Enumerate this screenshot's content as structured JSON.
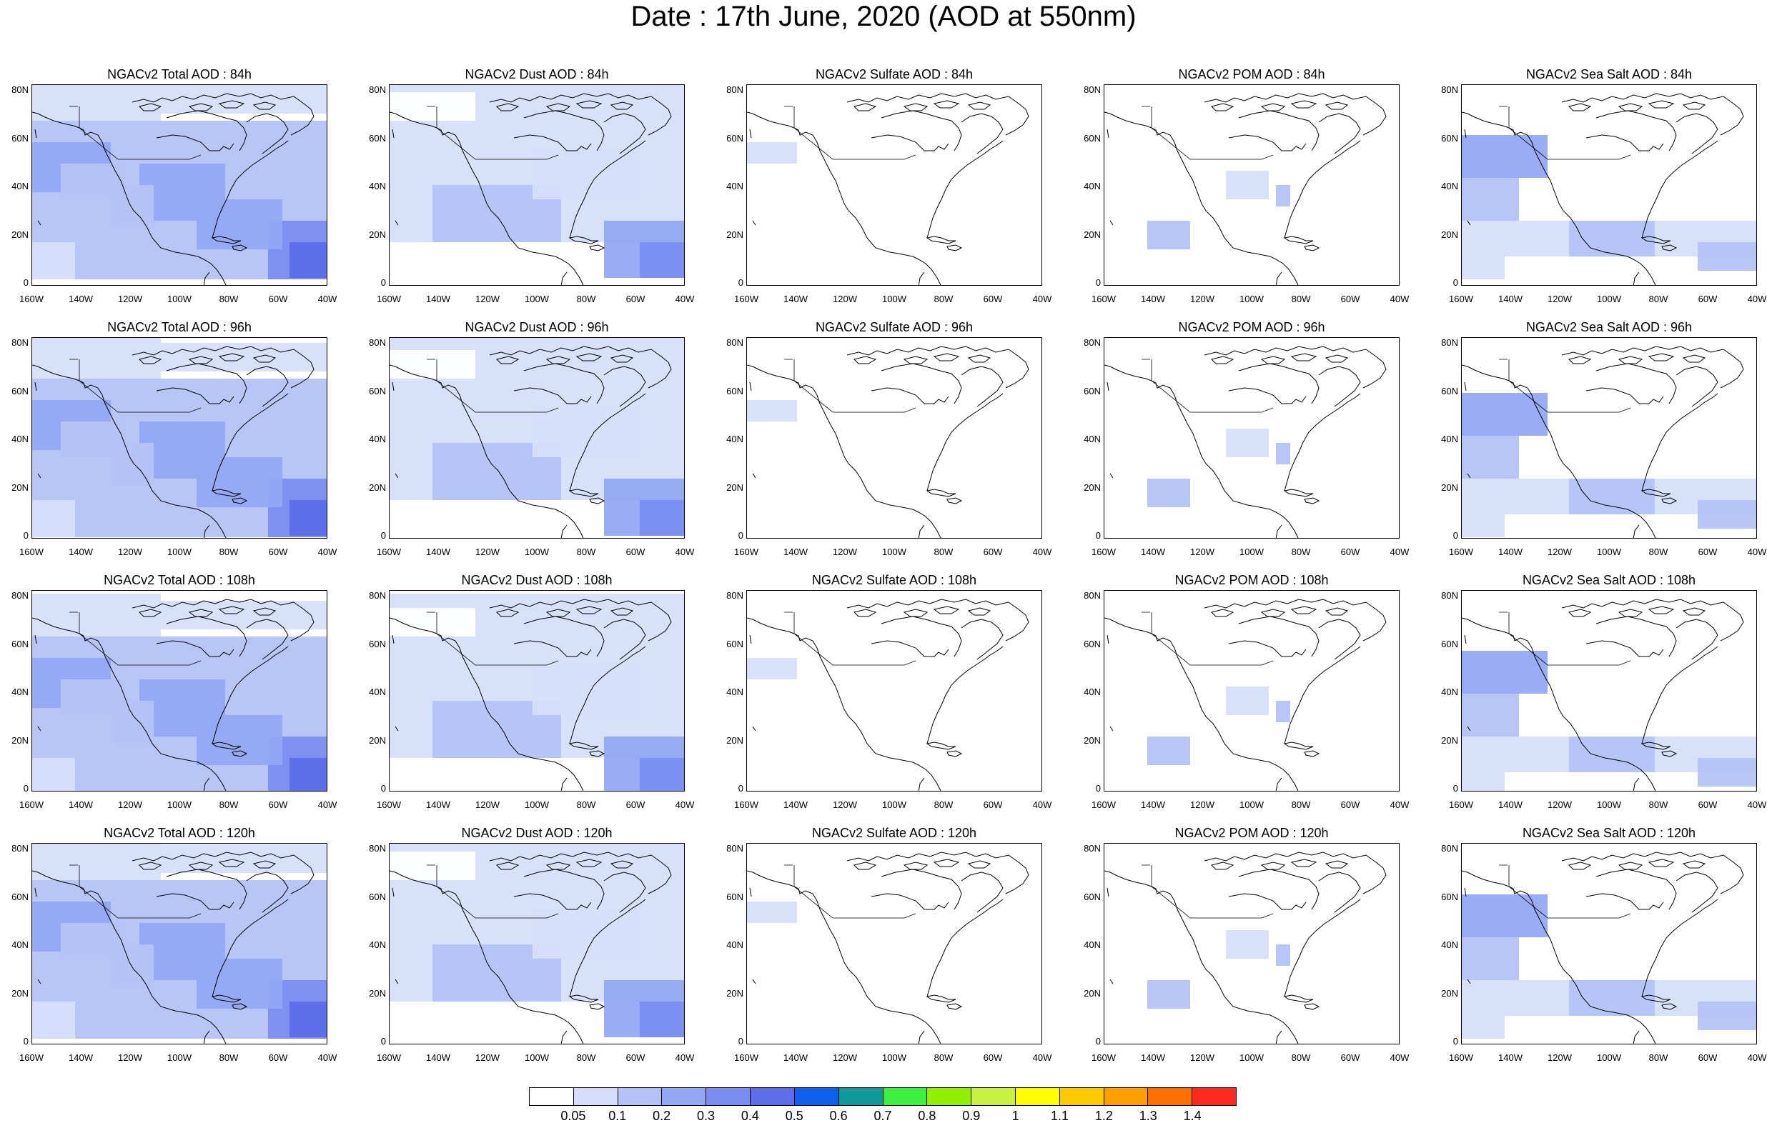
{
  "title": "Date : 17th June, 2020 (AOD at 550nm)",
  "axes": {
    "lat_ticks": [
      "80N",
      "60N",
      "40N",
      "20N",
      "0"
    ],
    "lon_ticks": [
      "160W",
      "140W",
      "120W",
      "100W",
      "80W",
      "60W",
      "40W"
    ]
  },
  "panels": [
    [
      "NGACv2 Total AOD : 84h",
      "NGACv2 Dust AOD : 84h",
      "NGACv2 Sulfate AOD : 84h",
      "NGACv2 POM AOD : 84h",
      "NGACv2 Sea Salt AOD : 84h"
    ],
    [
      "NGACv2 Total AOD : 96h",
      "NGACv2 Dust AOD : 96h",
      "NGACv2 Sulfate AOD : 96h",
      "NGACv2 POM AOD : 96h",
      "NGACv2 Sea Salt AOD : 96h"
    ],
    [
      "NGACv2 Total AOD : 108h",
      "NGACv2 Dust AOD : 108h",
      "NGACv2 Sulfate AOD : 108h",
      "NGACv2 POM AOD : 108h",
      "NGACv2 Sea Salt AOD : 108h"
    ],
    [
      "NGACv2 Total AOD : 120h",
      "NGACv2 Dust AOD : 120h",
      "NGACv2 Sulfate AOD : 120h",
      "NGACv2 POM AOD : 120h",
      "NGACv2 Sea Salt  AOD : 120h"
    ]
  ],
  "colorbar": {
    "colors": [
      "#ffffff",
      "#d6dffa",
      "#b4c3f7",
      "#93a8f4",
      "#7a8ef0",
      "#5e6ee8",
      "#1060f0",
      "#109a9a",
      "#3ef03e",
      "#90f000",
      "#c8f040",
      "#ffff00",
      "#ffc800",
      "#ffa000",
      "#ff7000",
      "#ff2a1e"
    ],
    "labels": [
      "0.05",
      "0.1",
      "0.2",
      "0.3",
      "0.4",
      "0.5",
      "0.6",
      "0.7",
      "0.8",
      "0.9",
      "1",
      "1.1",
      "1.2",
      "1.3",
      "1.4"
    ]
  }
}
